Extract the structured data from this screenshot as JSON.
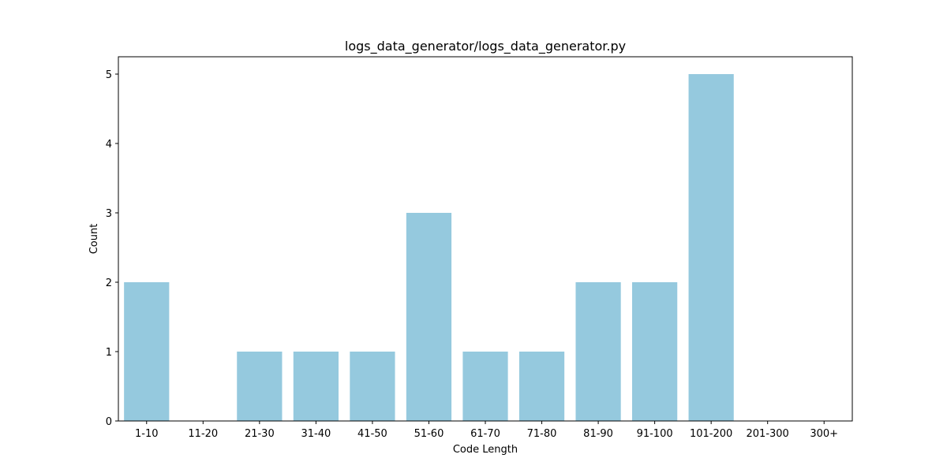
{
  "chart_data": {
    "type": "bar",
    "title": "logs_data_generator/logs_data_generator.py",
    "xlabel": "Code Length",
    "ylabel": "Count",
    "categories": [
      "1-10",
      "11-20",
      "21-30",
      "31-40",
      "41-50",
      "51-60",
      "61-70",
      "71-80",
      "81-90",
      "91-100",
      "101-200",
      "201-300",
      "300+"
    ],
    "values": [
      2,
      0,
      1,
      1,
      1,
      3,
      1,
      1,
      2,
      2,
      5,
      0,
      0
    ],
    "ylim": [
      0,
      5.25
    ],
    "yticks": [
      0,
      1,
      2,
      3,
      4,
      5
    ],
    "grid": false,
    "legend": "none",
    "bar_color": "#95c9de"
  }
}
